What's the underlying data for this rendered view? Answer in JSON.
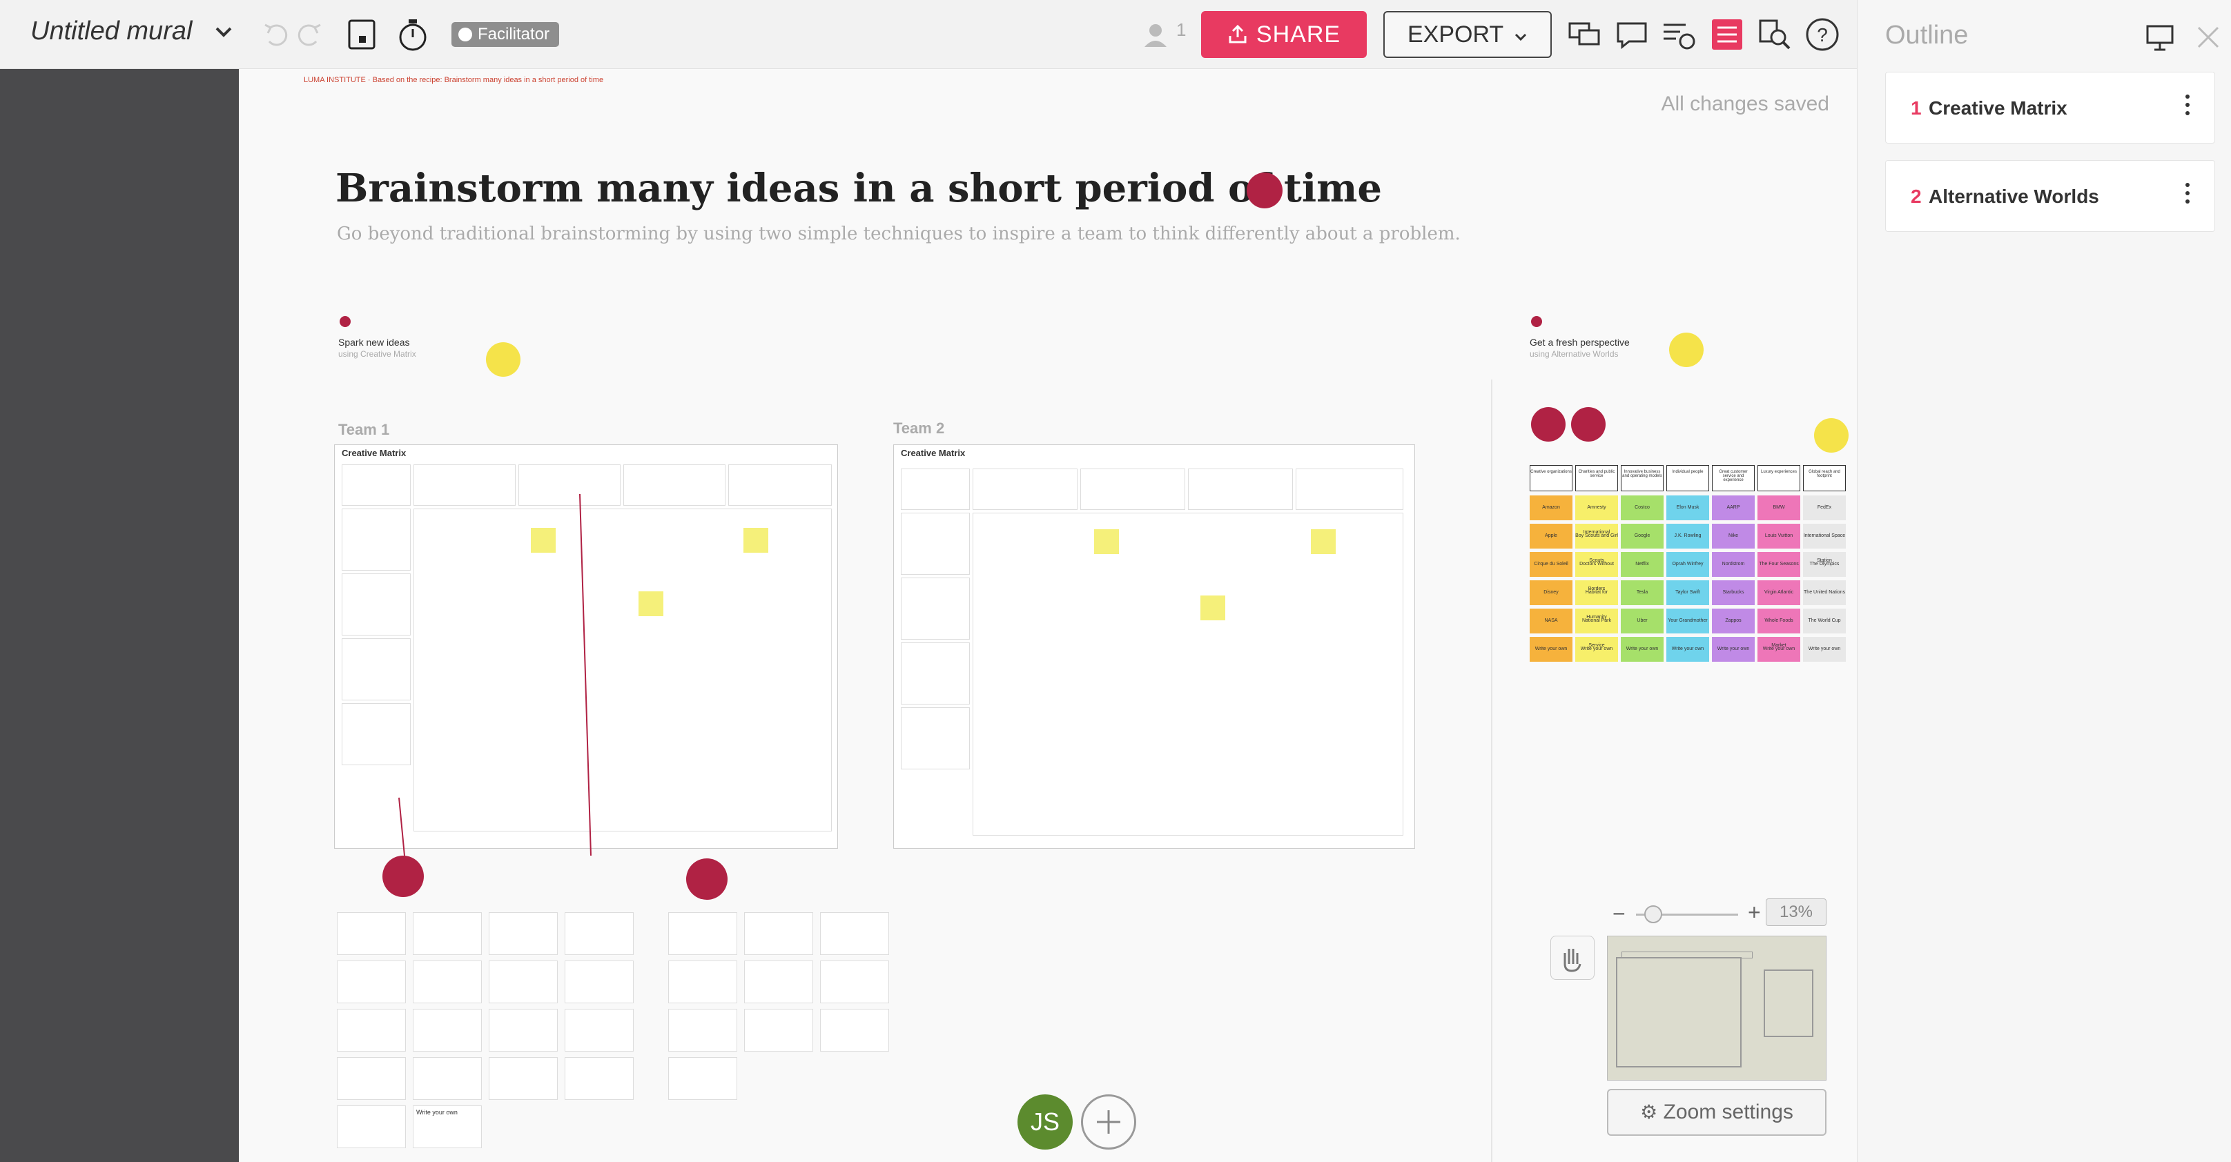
{
  "toolbar": {
    "mural_title": "Untitled mural",
    "facilitator_label": "Facilitator",
    "user_count": "1",
    "share_label": "SHARE",
    "export_label": "EXPORT"
  },
  "canvas": {
    "saved_status": "All changes saved",
    "title": "Brainstorm many ideas in a short period of time",
    "subtitle": "Go beyond traditional brainstorming by using two simple techniques to inspire a team to think differently about a problem.",
    "breadcrumb": "LUMA INSTITUTE · Based on the recipe: Brainstorm many ideas in a short period of time",
    "section1": {
      "title": "Spark new ideas",
      "subtitle": "using Creative Matrix"
    },
    "section2": {
      "title": "Get a fresh perspective",
      "subtitle": "using Alternative Worlds"
    },
    "team1": {
      "label": "Team 1",
      "panel": "Creative Matrix"
    },
    "team2": {
      "label": "Team 2",
      "panel": "Creative Matrix"
    },
    "write_your_own": "Write your own"
  },
  "alt_worlds": {
    "headers": [
      "Creative organizations",
      "Charities and public service",
      "Innovative business and operating models",
      "Individual people",
      "Great customer service and experience",
      "Luxury experiences",
      "Global reach and footprint"
    ],
    "rows": [
      [
        "Amazon",
        "Amnesty International",
        "Costco",
        "Elon Musk",
        "AARP",
        "BMW",
        "FedEx"
      ],
      [
        "Apple",
        "Boy Scouts and Girl Scouts",
        "Google",
        "J.K. Rowling",
        "Nike",
        "Louis Vuitton",
        "International Space Station"
      ],
      [
        "Cirque du Soleil",
        "Doctors Without Borders",
        "Netflix",
        "Oprah Winfrey",
        "Nordstrom",
        "The Four Seasons",
        "The Olympics"
      ],
      [
        "Disney",
        "Habitat for Humanity",
        "Tesla",
        "Taylor Swift",
        "Starbucks",
        "Virgin Atlantic",
        "The United Nations"
      ],
      [
        "NASA",
        "National Park Service",
        "Uber",
        "Your Grandmother",
        "Zappos",
        "Whole Foods Market",
        "The World Cup"
      ],
      [
        "Write your own",
        "Write your own",
        "Write your own",
        "Write your own",
        "Write your own",
        "Write your own",
        "Write your own"
      ]
    ],
    "colors": [
      "#f6b23c",
      "#f7ef6a",
      "#a6e06a",
      "#6fd3ec",
      "#c08ae6",
      "#ee76b8",
      "#e8e8e8"
    ]
  },
  "zoom": {
    "percent": "13%",
    "settings_label": "Zoom settings"
  },
  "collaborator": {
    "initials": "JS"
  },
  "outline": {
    "title": "Outline",
    "items": [
      {
        "num": "1",
        "label": "Creative Matrix"
      },
      {
        "num": "2",
        "label": "Alternative Worlds"
      }
    ]
  },
  "colors": {
    "accent": "#e83a61",
    "rail": "#4a4a4c",
    "dot_red": "#b02244",
    "dot_yellow": "#f5e34a"
  }
}
